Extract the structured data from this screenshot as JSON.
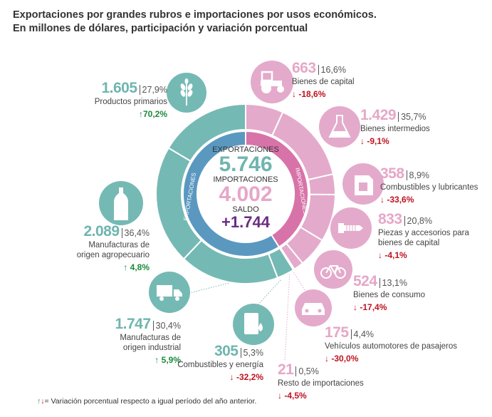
{
  "title_line1": "Exportaciones por grandes rubros e importaciones por usos económicos.",
  "title_line2": "En millones de dólares, participación y variación porcentual",
  "center": {
    "exports_label": "EXPORTACIONES",
    "exports_value": "5.746",
    "imports_label": "IMPORTACIONES",
    "imports_value": "4.002",
    "balance_label": "SALDO",
    "balance_value": "+1.744"
  },
  "ring_labels": {
    "exports": "EXPORTACIONES",
    "imports": "IMPORTACIONES"
  },
  "colors": {
    "exports_outer": "#75b9b4",
    "exports_inner": "#5a98c0",
    "imports_outer": "#e4aacb",
    "imports_inner": "#d873a9",
    "balance": "#6b2d7f",
    "up": "#1a8a3a",
    "down": "#c0121f"
  },
  "footer": {
    "up": "↑",
    "down": "↓",
    "text": "= Variación porcentual respecto a igual período del año anterior."
  },
  "chart_data": {
    "type": "pie",
    "title": "Exportaciones por grandes rubros e importaciones por usos económicos. En millones de dólares, participación y variación porcentual",
    "totals": {
      "exports": 5746,
      "imports": 4002,
      "balance": 1744
    },
    "exports": {
      "items": [
        {
          "name": "Productos primarios",
          "value": 1605,
          "value_text": "1.605",
          "share": "27,9%",
          "change": "70,2%",
          "dir": "↑",
          "icon": "wheat-icon"
        },
        {
          "name": "Manufacturas de origen agropecuario",
          "value": 2089,
          "value_text": "2.089",
          "share": "36,4%",
          "change": "4,8%",
          "dir": "↑",
          "icon": "bottle-icon"
        },
        {
          "name": "Manufacturas de origen industrial",
          "value": 1747,
          "value_text": "1.747",
          "share": "30,4%",
          "change": "5,9%",
          "dir": "↑",
          "icon": "truck-icon"
        },
        {
          "name": "Combustibles y energía",
          "value": 305,
          "value_text": "305",
          "share": "5,3%",
          "change": "-32,2%",
          "dir": "↓",
          "icon": "oil-drum-icon"
        }
      ]
    },
    "imports": {
      "items": [
        {
          "name": "Bienes de capital",
          "value": 663,
          "value_text": "663",
          "share": "16,6%",
          "change": "-18,6%",
          "dir": "↓",
          "icon": "tractor-icon"
        },
        {
          "name": "Bienes intermedios",
          "value": 1429,
          "value_text": "1.429",
          "share": "35,7%",
          "change": "-9,1%",
          "dir": "↓",
          "icon": "flask-icon"
        },
        {
          "name": "Combustibles y lubricantes",
          "value": 358,
          "value_text": "358",
          "share": "8,9%",
          "change": "-33,6%",
          "dir": "↓",
          "icon": "jerrycan-icon"
        },
        {
          "name": "Piezas y accesorios para bienes de capital",
          "name_l1": "Piezas y accesorios para",
          "name_l2": "bienes de capital",
          "value": 833,
          "value_text": "833",
          "share": "20,8%",
          "change": "-4,1%",
          "dir": "↓",
          "icon": "screw-icon"
        },
        {
          "name": "Bienes de consumo",
          "value": 524,
          "value_text": "524",
          "share": "13,1%",
          "change": "-17,4%",
          "dir": "↓",
          "icon": "bicycle-icon"
        },
        {
          "name": "Vehículos automotores de pasajeros",
          "value": 175,
          "value_text": "175",
          "share": "4,4%",
          "change": "-30,0%",
          "dir": "↓",
          "icon": "car-icon"
        },
        {
          "name": "Resto de importaciones",
          "value": 21,
          "value_text": "21",
          "share": "0,5%",
          "change": "-4,5%",
          "dir": "↓",
          "icon": ""
        }
      ]
    }
  },
  "labels": {
    "agro_l1": "Manufacturas de",
    "agro_l2": "origen agropecuario",
    "moi_l1": "Manufacturas de",
    "moi_l2": "origen industrial"
  }
}
